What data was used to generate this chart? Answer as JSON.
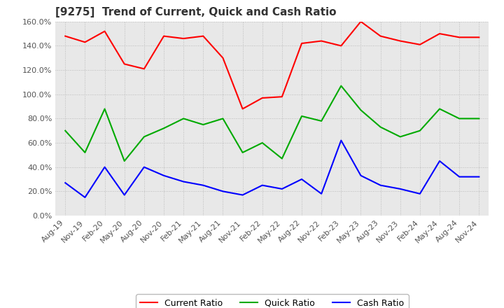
{
  "title": "[9275]  Trend of Current, Quick and Cash Ratio",
  "x_labels": [
    "Aug-19",
    "Nov-19",
    "Feb-20",
    "May-20",
    "Aug-20",
    "Nov-20",
    "Feb-21",
    "May-21",
    "Aug-21",
    "Nov-21",
    "Feb-22",
    "May-22",
    "Aug-22",
    "Nov-22",
    "Feb-23",
    "May-23",
    "Aug-23",
    "Nov-23",
    "Feb-24",
    "May-24",
    "Aug-24",
    "Nov-24"
  ],
  "current_ratio": [
    148,
    143,
    152,
    125,
    121,
    148,
    146,
    148,
    130,
    88,
    97,
    98,
    142,
    144,
    140,
    160,
    148,
    144,
    141,
    150,
    147,
    147
  ],
  "quick_ratio": [
    70,
    52,
    88,
    45,
    65,
    72,
    80,
    75,
    80,
    52,
    60,
    47,
    82,
    78,
    107,
    87,
    73,
    65,
    70,
    88,
    80,
    80
  ],
  "cash_ratio": [
    27,
    15,
    40,
    17,
    40,
    33,
    28,
    25,
    20,
    17,
    25,
    22,
    30,
    18,
    62,
    33,
    25,
    22,
    18,
    45,
    32,
    32
  ],
  "ylim": [
    0,
    160
  ],
  "yticks": [
    0,
    20,
    40,
    60,
    80,
    100,
    120,
    140,
    160
  ],
  "background_color": "#ffffff",
  "plot_bg_color": "#e8e8e8",
  "grid_color": "#bbbbbb",
  "current_color": "#ff0000",
  "quick_color": "#00aa00",
  "cash_color": "#0000ff",
  "title_fontsize": 11,
  "tick_fontsize": 8,
  "legend_fontsize": 9,
  "linewidth": 1.5
}
